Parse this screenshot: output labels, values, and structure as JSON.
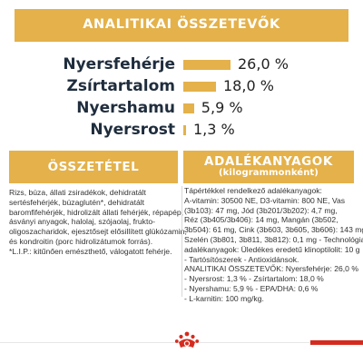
{
  "header": {
    "title": "ANALITIKAI ÖSSZETEVŐK"
  },
  "nutrients": [
    {
      "name": "Nyersfehérje",
      "value": "26,0 %",
      "percent": 26.0
    },
    {
      "name": "Zsírtartalom",
      "value": "18,0 %",
      "percent": 18.0
    },
    {
      "name": "Nyershamu",
      "value": "5,9 %",
      "percent": 5.9
    },
    {
      "name": "Nyersrost",
      "value": "1,3 %",
      "percent": 1.3
    }
  ],
  "composition": {
    "title": "ÖSSZETÉTEL",
    "lines": [
      "Rizs, búza, állati zsiradékok, dehidratált",
      "sertésfehérjék, búzaglutén*, dehidratált",
      "baromfifehérjék, hidrolizált állati fehérjék, répapép,",
      "ásványi anyagok, halolaj, szójaolaj, frukto-",
      "oligoszacharidok, ejesztősejt elősillített glükózamin,",
      "és kondroitin (porc hidrolizátumok forrás).",
      "*L.I.P.: kitűnően emészthető, válogatott fehérje."
    ]
  },
  "additives": {
    "title": "ADALÉKANYAGOK",
    "subtitle": "(kilogrammonként)",
    "lines": [
      "Tápértékkel rendelkező adalékanyagok:",
      "A-vitamin: 30500 NE, D3-vitamin: 800 NE, Vas",
      "(3b103): 47 mg, Jód (3b201/3b202): 4,7 mg,",
      "Réz (3b405/3b406): 14 mg, Mangán (3b502,",
      "3b504): 61 mg, Cink (3b603, 3b605, 3b606): 143 mg,",
      "Szelén (3b801, 3b811, 3b812): 0,1 mg - Technológiai",
      "adalékanyagok: Üledékes eredetű klinoptilolit: 10 g",
      "- Tartósítószerek - Antioxidánsok.",
      "ANALITIKAI ÖSSZETEVŐK: Nyersfehérje: 26,0 %",
      "- Nyersrost: 1,3 % - Zsírtartalom: 18,0 %",
      "- Nyershamu: 5,9 % - EPA/DHA: 0,6 %",
      "- L-karnitin: 100 mg/kg."
    ]
  },
  "colors": {
    "accent": "#e4b14a",
    "brand_red": "#d52b1e",
    "text_dark": "#1f2d3d"
  },
  "logo": {
    "icon": "royal-canin-crown-icon"
  }
}
